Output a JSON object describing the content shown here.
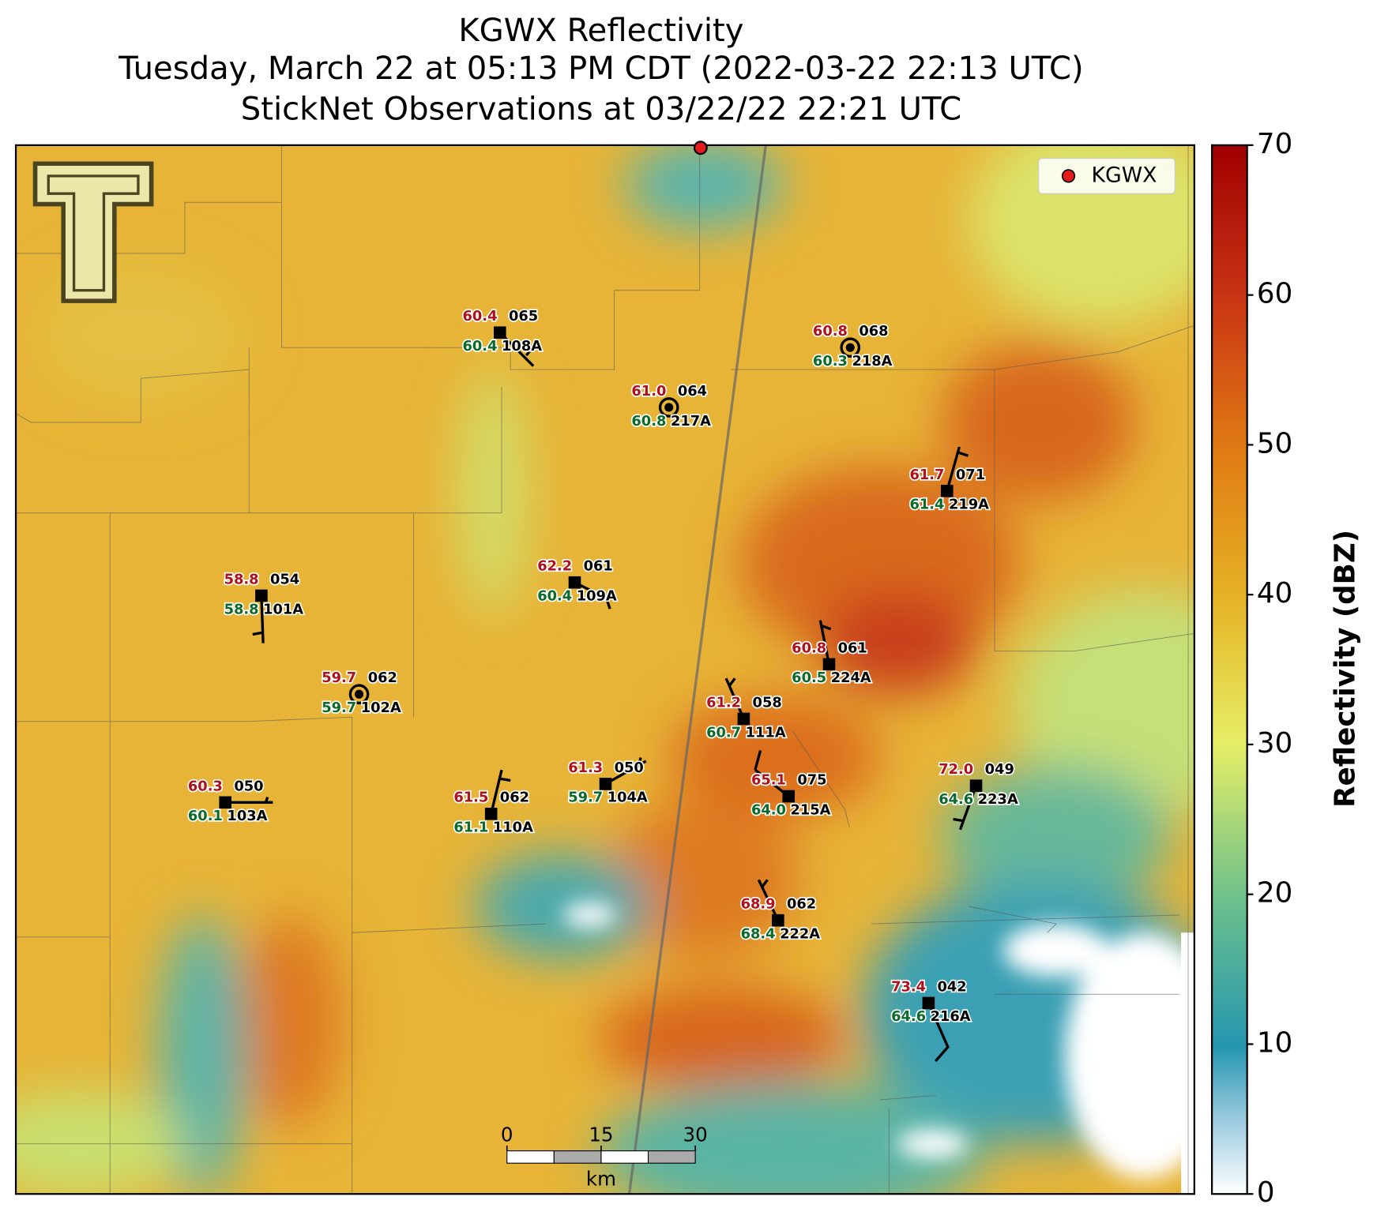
{
  "title": {
    "lines": [
      "KGWX Reflectivity",
      "Tuesday, March 22 at 05:13 PM CDT (2022-03-22 22:13 UTC)",
      "StickNet Observations at 03/22/22 22:21 UTC"
    ]
  },
  "legend": {
    "label": "KGWX"
  },
  "colorbar": {
    "label": "Reflectivity (dBZ)",
    "lim": [
      0,
      70
    ],
    "ticks": [
      0,
      10,
      20,
      30,
      40,
      50,
      60,
      70
    ]
  },
  "scale_bar": {
    "ticks": [
      0,
      15,
      30
    ],
    "unit": "km"
  },
  "stations": [
    {
      "id": "108A",
      "temperature": "60.4",
      "dewpoint": "60.4",
      "code": "065"
    },
    {
      "id": "218A",
      "temperature": "60.8",
      "dewpoint": "60.3",
      "code": "068"
    },
    {
      "id": "217A",
      "temperature": "61.0",
      "dewpoint": "60.8",
      "code": "064"
    },
    {
      "id": "219A",
      "temperature": "61.7",
      "dewpoint": "61.4",
      "code": "071"
    },
    {
      "id": "109A",
      "temperature": "62.2",
      "dewpoint": "60.4",
      "code": "061"
    },
    {
      "id": "101A",
      "temperature": "58.8",
      "dewpoint": "58.8",
      "code": "054"
    },
    {
      "id": "224A",
      "temperature": "60.8",
      "dewpoint": "60.5",
      "code": "061"
    },
    {
      "id": "102A",
      "temperature": "59.7",
      "dewpoint": "59.7",
      "code": "062"
    },
    {
      "id": "111A",
      "temperature": "61.2",
      "dewpoint": "60.7",
      "code": "058"
    },
    {
      "id": "104A",
      "temperature": "61.3",
      "dewpoint": "59.7",
      "code": "050"
    },
    {
      "id": "215A",
      "temperature": "65.1",
      "dewpoint": "64.0",
      "code": "075"
    },
    {
      "id": "223A",
      "temperature": "72.0",
      "dewpoint": "64.6",
      "code": "049"
    },
    {
      "id": "103A",
      "temperature": "60.3",
      "dewpoint": "60.1",
      "code": "050"
    },
    {
      "id": "110A",
      "temperature": "61.5",
      "dewpoint": "61.1",
      "code": "062"
    },
    {
      "id": "222A",
      "temperature": "68.9",
      "dewpoint": "68.4",
      "code": "062"
    },
    {
      "id": "216A",
      "temperature": "73.4",
      "dewpoint": "64.6",
      "code": "042"
    }
  ]
}
